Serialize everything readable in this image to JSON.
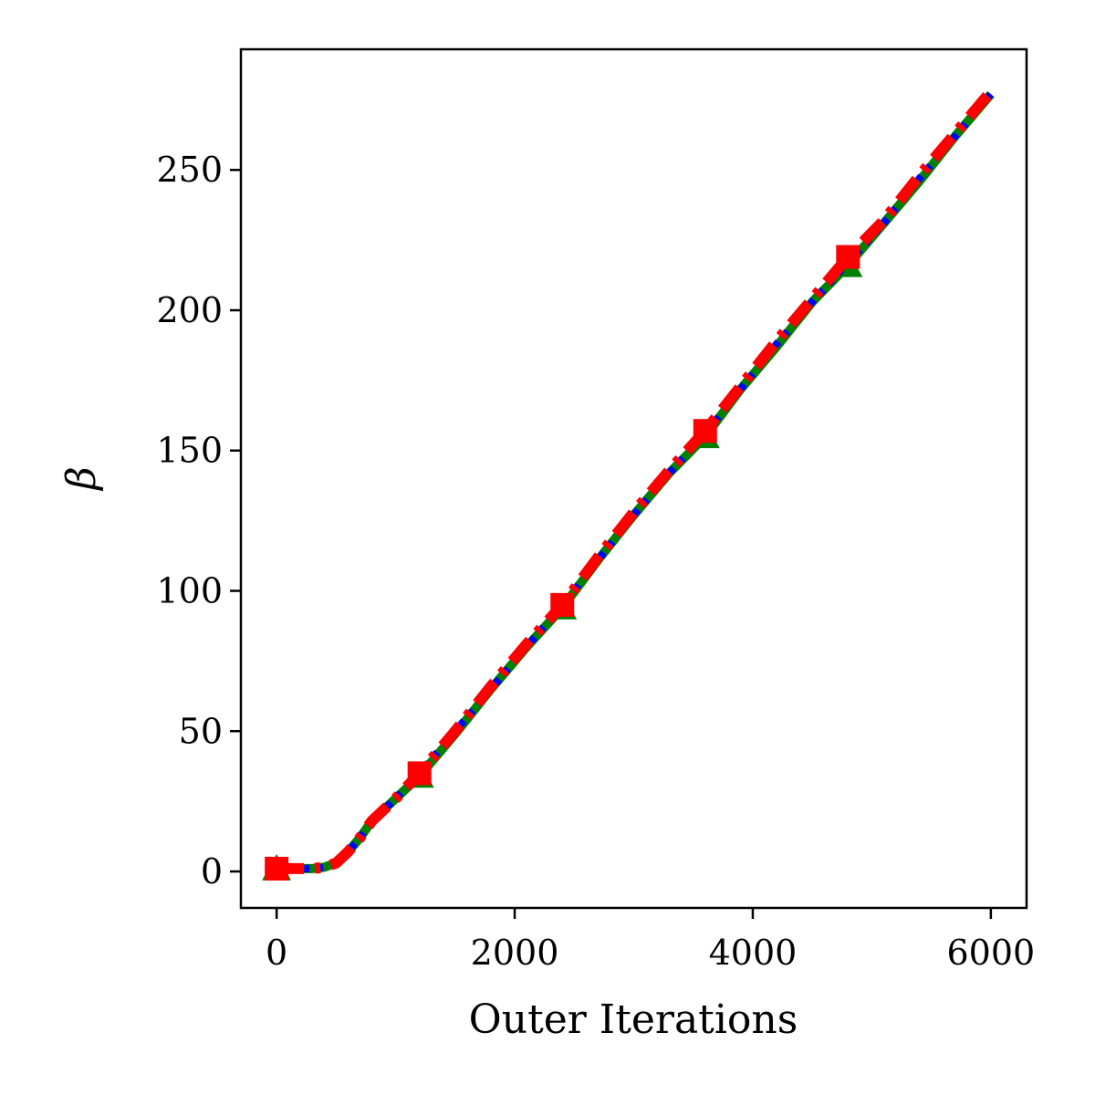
{
  "chart_data": {
    "type": "line",
    "title": "",
    "xlabel": "Outer Iterations",
    "ylabel": "β",
    "xlim": [
      -300,
      6300
    ],
    "ylim": [
      -13,
      293
    ],
    "x_ticks": [
      0,
      2000,
      4000,
      6000
    ],
    "x_tick_labels": [
      "0",
      "2000",
      "4000",
      "6000"
    ],
    "y_ticks": [
      0,
      50,
      100,
      150,
      200,
      250
    ],
    "y_tick_labels": [
      "0",
      "50",
      "100",
      "150",
      "200",
      "250"
    ],
    "grid": false,
    "legend": "none",
    "series": [
      {
        "color": "#008000",
        "line_style": "solid",
        "marker": "triangle",
        "x": [
          0,
          100,
          200,
          300,
          400,
          500,
          600,
          700,
          800,
          1000,
          1200,
          1500,
          1800,
          2100,
          2400,
          2700,
          3000,
          3300,
          3600,
          3900,
          4200,
          4500,
          4800,
          5100,
          5400,
          5700,
          6000
        ],
        "y": [
          1,
          1,
          1,
          1,
          1.5,
          3,
          7,
          12,
          18,
          26,
          34,
          49,
          65,
          80,
          94,
          111,
          127,
          142,
          155,
          172,
          187,
          203,
          216,
          231,
          246,
          262,
          277
        ],
        "marker_x": [
          0,
          1200,
          2400,
          3600,
          4800
        ],
        "marker_y": [
          1,
          34,
          94,
          155,
          216
        ]
      },
      {
        "color": "#0000ff",
        "line_style": "dotted",
        "marker": "none",
        "x": [
          0,
          100,
          200,
          300,
          400,
          500,
          600,
          700,
          800,
          1000,
          1200,
          1500,
          1800,
          2100,
          2400,
          2700,
          3000,
          3300,
          3600,
          3900,
          4200,
          4500,
          4800,
          5100,
          5400,
          5700,
          6000
        ],
        "y": [
          1,
          1,
          1,
          1,
          1.5,
          3,
          7,
          12,
          18,
          26,
          35,
          50,
          65,
          80,
          95,
          111,
          127,
          142,
          156,
          172,
          188,
          203,
          217,
          231,
          247,
          262,
          277
        ],
        "marker_x": [],
        "marker_y": []
      },
      {
        "color": "#ff0000",
        "line_style": "dashdot",
        "marker": "square",
        "x": [
          0,
          100,
          200,
          300,
          400,
          500,
          600,
          700,
          800,
          1000,
          1200,
          1500,
          1800,
          2100,
          2400,
          2700,
          3000,
          3300,
          3600,
          3900,
          4200,
          4500,
          4800,
          5100,
          5400,
          5700,
          6000
        ],
        "y": [
          1,
          1,
          1,
          1,
          1.5,
          3,
          7,
          12,
          18,
          26,
          35,
          50,
          66,
          81,
          95,
          112,
          128,
          143,
          157,
          173,
          189,
          204,
          219,
          232,
          248,
          263,
          278
        ],
        "marker_x": [
          0,
          1200,
          2400,
          3600,
          4800
        ],
        "marker_y": [
          1,
          35,
          95,
          157,
          219
        ]
      }
    ]
  }
}
